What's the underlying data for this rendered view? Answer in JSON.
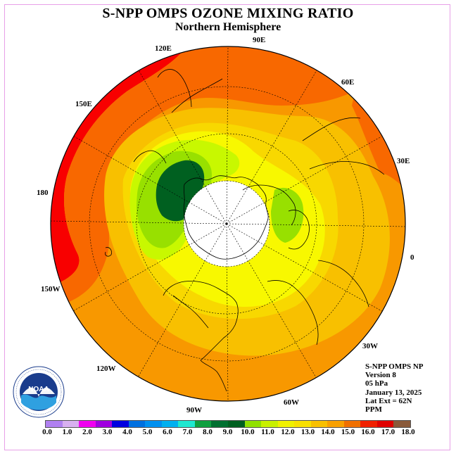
{
  "title": "S-NPP OMPS OZONE MIXING RATIO",
  "subtitle": "Northern Hemisphere",
  "longitude_labels": [
    "90E",
    "60E",
    "30E",
    "0",
    "30W",
    "60W",
    "90W",
    "120W",
    "150W",
    "180",
    "150E",
    "120E"
  ],
  "info": {
    "line1": "S-NPP OMPS NP",
    "line2": "Version 8",
    "line3": "05 hPa",
    "line4": "January 13, 2025",
    "line5": "Lat Ext = 62N",
    "line6": "PPM"
  },
  "logo": {
    "text": "NOAA",
    "ring_text": "NATIONAL OCEANIC AND ATMOSPHERIC ADMINISTRATION · U.S. DEPARTMENT OF COMMERCE"
  },
  "colorbar": {
    "colors": [
      "#b080f0",
      "#d8b0f0",
      "#f000f0",
      "#a000e0",
      "#0000e0",
      "#0070e0",
      "#0090f0",
      "#00b0f0",
      "#20e8d0",
      "#10a040",
      "#007030",
      "#006020",
      "#90e000",
      "#c8f000",
      "#f0f000",
      "#f8e000",
      "#f8c000",
      "#f8a000",
      "#f07000",
      "#f02000",
      "#e00000",
      "#8a5a3a"
    ],
    "labels": [
      "0.0",
      "1.0",
      "2.0",
      "3.0",
      "4.0",
      "5.0",
      "6.0",
      "7.0",
      "8.0",
      "9.0",
      "10.0",
      "11.0",
      "12.0",
      "13.0",
      "14.0",
      "15.0",
      "16.0",
      "17.0",
      "18.0"
    ]
  },
  "colors": {
    "red": "#f80000",
    "orange_red": "#f86800",
    "orange": "#f89800",
    "light_orange": "#f8c000",
    "yellow_gold": "#f8d800",
    "yellow": "#f8f800",
    "yellow_green": "#c8f800",
    "green": "#98e000",
    "dark_green": "#006020",
    "no_data": "#ffffff"
  }
}
